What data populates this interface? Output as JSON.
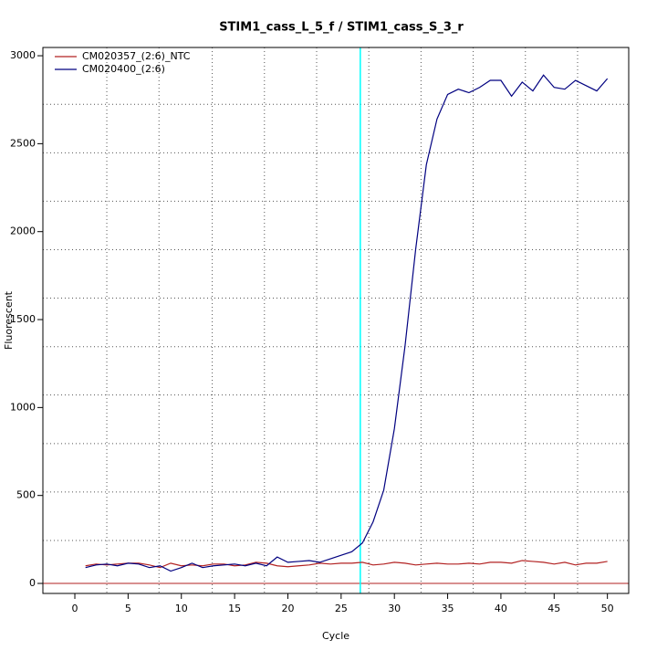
{
  "chart_data": {
    "type": "line",
    "title": "STIM1_cass_L_5_f / STIM1_cass_S_3_r",
    "x_label": "Cycle",
    "y_label": "Fluorescent",
    "x": [
      1,
      2,
      3,
      4,
      5,
      6,
      7,
      8,
      9,
      10,
      11,
      12,
      13,
      14,
      15,
      16,
      17,
      18,
      19,
      20,
      21,
      22,
      23,
      24,
      25,
      26,
      27,
      28,
      29,
      30,
      31,
      32,
      33,
      34,
      35,
      36,
      37,
      38,
      39,
      40,
      41,
      42,
      43,
      44,
      45,
      46,
      47,
      48,
      49,
      50
    ],
    "series": [
      {
        "name": "CM020357_(2:6)_NTC",
        "color": "#b22222",
        "values": [
          100,
          110,
          105,
          110,
          115,
          115,
          105,
          90,
          115,
          100,
          105,
          100,
          110,
          110,
          100,
          105,
          120,
          115,
          100,
          95,
          100,
          105,
          115,
          110,
          115,
          115,
          120,
          105,
          110,
          120,
          115,
          105,
          110,
          115,
          110,
          110,
          115,
          110,
          120,
          120,
          115,
          130,
          125,
          120,
          110,
          120,
          105,
          115,
          115,
          125
        ]
      },
      {
        "name": "CM020400_(2:6)",
        "color": "#000080",
        "values": [
          90,
          105,
          110,
          100,
          115,
          110,
          90,
          100,
          70,
          90,
          115,
          90,
          100,
          105,
          110,
          100,
          115,
          100,
          150,
          120,
          125,
          130,
          120,
          140,
          160,
          180,
          230,
          350,
          530,
          880,
          1350,
          1900,
          2380,
          2640,
          2780,
          2810,
          2790,
          2820,
          2860,
          2860,
          2770,
          2850,
          2800,
          2890,
          2820,
          2810,
          2860,
          2830,
          2800,
          2870
        ]
      }
    ],
    "xlim": [
      -3,
      52
    ],
    "ylim": [
      -57,
      3047
    ],
    "xticks": [
      0,
      5,
      10,
      15,
      20,
      25,
      30,
      35,
      40,
      45,
      50
    ],
    "yticks": [
      0,
      500,
      1000,
      1500,
      2000,
      2500,
      3000
    ],
    "x_grid": [
      3,
      7.9,
      12.9,
      17.8,
      22.7,
      27.6,
      32.5,
      37.4,
      42.3,
      47.2
    ],
    "y_grid": [
      244,
      520,
      795,
      1071,
      1346,
      1622,
      1897,
      2173,
      2448,
      2724
    ],
    "threshold_x": 26.8,
    "threshold_x_color": "#00ffff",
    "baseline_y": 0,
    "baseline_y_color": "#b22222",
    "legend": "top-left"
  }
}
